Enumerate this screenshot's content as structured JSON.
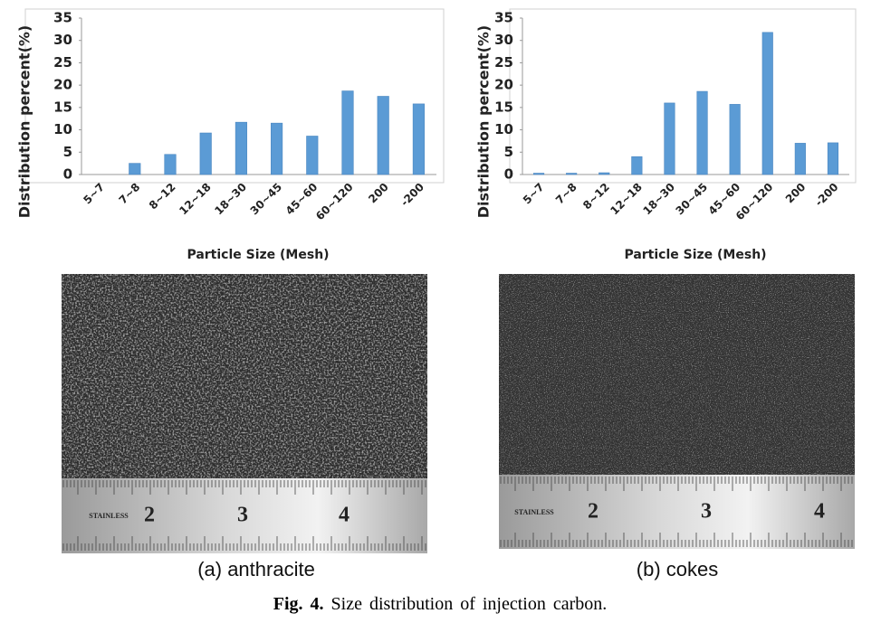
{
  "chart_data": [
    {
      "type": "bar",
      "y_label": "Distribution percent(%)",
      "x_label": "Particle Size (Mesh)",
      "categories": [
        "5~7",
        "7~8",
        "8~12",
        "12~18",
        "18~30",
        "30~45",
        "45~60",
        "60~120",
        "200",
        "-200"
      ],
      "values": [
        0,
        2.5,
        4.5,
        9.3,
        11.7,
        11.5,
        8.6,
        18.7,
        17.5,
        15.8
      ],
      "color": "#5b9bd5",
      "ylim": [
        0,
        35
      ],
      "yticks": [
        0,
        5,
        10,
        15,
        20,
        25,
        30,
        35
      ],
      "grid": false
    },
    {
      "type": "bar",
      "y_label": "Distribution percent(%)",
      "x_label": "Particle Size (Mesh)",
      "categories": [
        "5~7",
        "7~8",
        "8~12",
        "12~18",
        "18~30",
        "30~45",
        "45~60",
        "60~120",
        "200",
        "-200"
      ],
      "values": [
        0.3,
        0.3,
        0.4,
        4,
        16,
        18.6,
        15.7,
        31.8,
        7,
        7.1
      ],
      "color": "#5b9bd5",
      "ylim": [
        0,
        35
      ],
      "yticks": [
        0,
        5,
        10,
        15,
        20,
        25,
        30,
        35
      ],
      "grid": false
    }
  ],
  "photos": [
    {
      "caption": "(a) anthracite",
      "ruler_labels": [
        "STAINLESS",
        "2",
        "3",
        "4"
      ]
    },
    {
      "caption": "(b) cokes",
      "ruler_labels": [
        "STAINLESS",
        "2",
        "3",
        "4"
      ]
    }
  ],
  "figure_caption": {
    "label": "Fig. 4.",
    "text": "Size distribution of injection carbon."
  }
}
